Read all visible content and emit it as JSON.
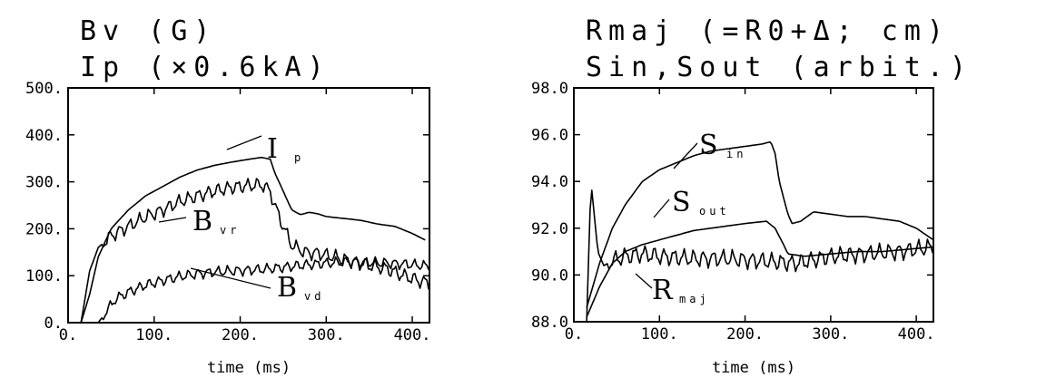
{
  "chart_data": [
    {
      "type": "line",
      "title_lines": [
        "Bv (G)",
        "Ip (×0.6kA)"
      ],
      "xlabel": "time (ms)",
      "ylabel": "",
      "xlim": [
        0,
        420
      ],
      "ylim": [
        0,
        500
      ],
      "xticks": [
        "0.",
        "100.",
        "200.",
        "300.",
        "400."
      ],
      "yticks": [
        "0.",
        "100.",
        "200.",
        "300.",
        "400.",
        "500."
      ],
      "series": [
        {
          "name": "Ip",
          "label_main": "I",
          "label_sub": "p",
          "points": [
            [
              15,
              0
            ],
            [
              25,
              60
            ],
            [
              35,
              140
            ],
            [
              50,
              200
            ],
            [
              70,
              240
            ],
            [
              90,
              270
            ],
            [
              110,
              290
            ],
            [
              130,
              310
            ],
            [
              150,
              325
            ],
            [
              170,
              335
            ],
            [
              190,
              342
            ],
            [
              210,
              348
            ],
            [
              225,
              352
            ],
            [
              235,
              348
            ],
            [
              240,
              320
            ],
            [
              250,
              280
            ],
            [
              260,
              240
            ],
            [
              270,
              230
            ],
            [
              280,
              235
            ],
            [
              290,
              232
            ],
            [
              300,
              226
            ],
            [
              320,
              222
            ],
            [
              340,
              218
            ],
            [
              360,
              210
            ],
            [
              380,
              205
            ],
            [
              400,
              190
            ],
            [
              415,
              176
            ]
          ],
          "ripple": 0
        },
        {
          "name": "Bvr",
          "label_main": "B",
          "label_sub": "vr",
          "points": [
            [
              15,
              0
            ],
            [
              25,
              110
            ],
            [
              35,
              160
            ],
            [
              50,
              185
            ],
            [
              70,
              205
            ],
            [
              90,
              225
            ],
            [
              110,
              240
            ],
            [
              130,
              258
            ],
            [
              150,
              270
            ],
            [
              170,
              280
            ],
            [
              190,
              288
            ],
            [
              210,
              292
            ],
            [
              225,
              294
            ],
            [
              235,
              280
            ],
            [
              240,
              250
            ],
            [
              250,
              205
            ],
            [
              260,
              165
            ],
            [
              275,
              150
            ],
            [
              290,
              148
            ],
            [
              310,
              140
            ],
            [
              330,
              130
            ],
            [
              350,
              122
            ],
            [
              370,
              115
            ],
            [
              390,
              100
            ],
            [
              410,
              88
            ],
            [
              420,
              85
            ]
          ],
          "ripple": 12
        },
        {
          "name": "Bvd",
          "label_main": "B",
          "label_sub": "vd",
          "points": [
            [
              25,
              0
            ],
            [
              35,
              0
            ],
            [
              45,
              25
            ],
            [
              55,
              50
            ],
            [
              70,
              65
            ],
            [
              90,
              80
            ],
            [
              110,
              90
            ],
            [
              130,
              98
            ],
            [
              150,
              104
            ],
            [
              170,
              108
            ],
            [
              190,
              110
            ],
            [
              210,
              112
            ],
            [
              230,
              114
            ],
            [
              250,
              118
            ],
            [
              270,
              122
            ],
            [
              290,
              125
            ],
            [
              310,
              128
            ],
            [
              330,
              130
            ],
            [
              350,
              128
            ],
            [
              370,
              127
            ],
            [
              390,
              125
            ],
            [
              410,
              122
            ],
            [
              420,
              120
            ]
          ],
          "ripple": 9
        }
      ]
    },
    {
      "type": "line",
      "title_lines": [
        "Rmaj (=R0+Δ; cm)",
        "Sin,Sout (arbit.)"
      ],
      "xlabel": "time (ms)",
      "ylabel": "",
      "xlim": [
        0,
        420
      ],
      "ylim": [
        88,
        98
      ],
      "xticks": [
        "0.",
        "100.",
        "200.",
        "300.",
        "400."
      ],
      "yticks": [
        "88.0",
        "90.0",
        "92.0",
        "94.0",
        "96.0",
        "98.0"
      ],
      "series": [
        {
          "name": "Sin",
          "label_main": "S",
          "label_sub": "in",
          "points": [
            [
              15,
              88.6
            ],
            [
              30,
              90.5
            ],
            [
              45,
              92.0
            ],
            [
              60,
              93.0
            ],
            [
              80,
              94.0
            ],
            [
              100,
              94.5
            ],
            [
              120,
              94.8
            ],
            [
              140,
              95.1
            ],
            [
              160,
              95.3
            ],
            [
              180,
              95.4
            ],
            [
              200,
              95.5
            ],
            [
              220,
              95.6
            ],
            [
              230,
              95.7
            ],
            [
              235,
              95.2
            ],
            [
              240,
              94.0
            ],
            [
              250,
              92.6
            ],
            [
              255,
              92.2
            ],
            [
              265,
              92.3
            ],
            [
              280,
              92.7
            ],
            [
              300,
              92.6
            ],
            [
              320,
              92.5
            ],
            [
              340,
              92.5
            ],
            [
              360,
              92.4
            ],
            [
              380,
              92.3
            ],
            [
              400,
              92.0
            ],
            [
              420,
              91.5
            ]
          ],
          "ripple": 0
        },
        {
          "name": "Sout",
          "label_main": "S",
          "label_sub": "out",
          "points": [
            [
              15,
              88.2
            ],
            [
              30,
              89.5
            ],
            [
              45,
              90.5
            ],
            [
              60,
              91.0
            ],
            [
              80,
              91.3
            ],
            [
              100,
              91.5
            ],
            [
              120,
              91.7
            ],
            [
              140,
              91.9
            ],
            [
              160,
              92.0
            ],
            [
              180,
              92.1
            ],
            [
              200,
              92.2
            ],
            [
              225,
              92.3
            ],
            [
              235,
              92.0
            ],
            [
              245,
              91.3
            ],
            [
              250,
              90.9
            ],
            [
              270,
              90.8
            ],
            [
              300,
              90.9
            ],
            [
              330,
              91.0
            ],
            [
              360,
              91.0
            ],
            [
              390,
              91.1
            ],
            [
              420,
              91.2
            ]
          ],
          "ripple": 0
        },
        {
          "name": "Rmaj",
          "label_main": "R",
          "label_sub": "maj",
          "points": [
            [
              15,
              88.0
            ],
            [
              20,
              94.0
            ],
            [
              28,
              91.0
            ],
            [
              35,
              90.4
            ],
            [
              45,
              90.6
            ],
            [
              60,
              90.8
            ],
            [
              80,
              90.9
            ],
            [
              100,
              90.8
            ],
            [
              140,
              90.7
            ],
            [
              180,
              90.7
            ],
            [
              220,
              90.6
            ],
            [
              260,
              90.5
            ],
            [
              300,
              90.8
            ],
            [
              340,
              90.9
            ],
            [
              380,
              91.0
            ],
            [
              420,
              91.2
            ]
          ],
          "ripple": 0.3
        }
      ]
    }
  ]
}
